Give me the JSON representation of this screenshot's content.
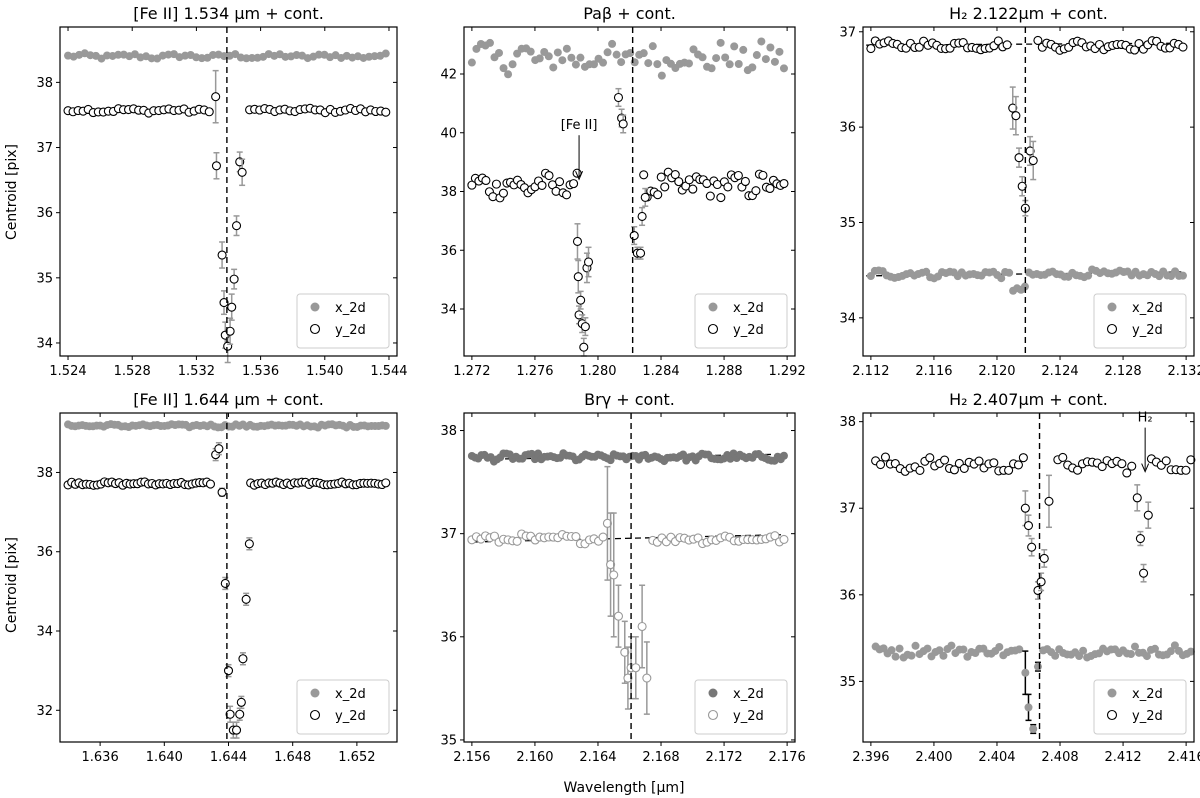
{
  "figure": {
    "xlabel": "Wavelength [μm]",
    "ylabel": "Centroid [pix]"
  },
  "chart_data": [
    {
      "type": "scatter",
      "title": "[Fe II] 1.534 μm + cont.",
      "xlim": [
        1.5235,
        1.5445
      ],
      "ylim": [
        33.8,
        38.85
      ],
      "xticks": [
        1.524,
        1.528,
        1.532,
        1.536,
        1.54,
        1.544
      ],
      "yticks": [
        34,
        35,
        36,
        37,
        38
      ],
      "vline": 1.5339,
      "legend": {
        "position": "lower right",
        "entries": [
          "x_2d",
          "y_2d"
        ]
      },
      "series": [
        {
          "name": "x_2d",
          "marker": "filled",
          "color": "#999999",
          "baseline": {
            "from": 1.524,
            "to": 1.5438,
            "y": 38.4,
            "jitter": 0.035,
            "n": 58
          }
        },
        {
          "name": "y_2d",
          "marker": "open",
          "color": "#000000",
          "baseline": {
            "from": 1.524,
            "to": 1.5438,
            "y": 37.57,
            "jitter": 0.03,
            "n": 64,
            "gap": [
              1.5328,
              1.5351
            ]
          },
          "points": [
            {
              "x": 1.5332,
              "y": 37.78,
              "err": 0.4
            },
            {
              "x": 1.53325,
              "y": 36.72,
              "err": 0.2
            },
            {
              "x": 1.5336,
              "y": 35.35,
              "err": 0.2
            },
            {
              "x": 1.53372,
              "y": 34.62,
              "err": 0.18
            },
            {
              "x": 1.5338,
              "y": 34.12,
              "err": 0.2
            },
            {
              "x": 1.53395,
              "y": 33.95,
              "err": 0.25
            },
            {
              "x": 1.5341,
              "y": 34.18,
              "err": 0.2
            },
            {
              "x": 1.5342,
              "y": 34.55,
              "err": 0.2
            },
            {
              "x": 1.53435,
              "y": 34.98,
              "err": 0.15
            },
            {
              "x": 1.5345,
              "y": 35.8,
              "err": 0.15
            },
            {
              "x": 1.5347,
              "y": 36.78,
              "err": 0.15
            },
            {
              "x": 1.53485,
              "y": 36.62,
              "err": 0.2
            }
          ]
        }
      ]
    },
    {
      "type": "scatter",
      "title": "Paβ + cont.",
      "xlim": [
        1.2715,
        1.2925
      ],
      "ylim": [
        32.4,
        43.6
      ],
      "xticks": [
        1.272,
        1.276,
        1.28,
        1.284,
        1.288,
        1.292
      ],
      "yticks": [
        34,
        36,
        38,
        40,
        42
      ],
      "vline": 1.2822,
      "legend": {
        "position": "lower right",
        "entries": [
          "x_2d",
          "y_2d"
        ]
      },
      "annotations": [
        {
          "text": "[Fe II]",
          "x": 1.2788,
          "y": 38.35
        }
      ],
      "series": [
        {
          "name": "x_2d",
          "marker": "filled",
          "color": "#999999",
          "baseline": {
            "from": 1.272,
            "to": 1.2918,
            "y": 42.55,
            "jitter": 0.45,
            "n": 70
          }
        },
        {
          "name": "y_2d",
          "marker": "open",
          "color": "#000000",
          "baseline": {
            "from": 1.272,
            "to": 1.2918,
            "y": 38.2,
            "jitter": 0.35,
            "n": 90,
            "gap": [
              1.2787,
              1.2828
            ]
          },
          "points": [
            {
              "x": 1.2787,
              "y": 36.3,
              "err": 0.6
            },
            {
              "x": 1.27875,
              "y": 35.1,
              "err": 0.55
            },
            {
              "x": 1.2788,
              "y": 33.8,
              "err": 0.3
            },
            {
              "x": 1.2789,
              "y": 34.3,
              "err": 0.3
            },
            {
              "x": 1.279,
              "y": 33.5,
              "err": 0.3
            },
            {
              "x": 1.2791,
              "y": 32.7,
              "err": 0.3
            },
            {
              "x": 1.2792,
              "y": 33.4,
              "err": 0.3
            },
            {
              "x": 1.2793,
              "y": 35.4,
              "err": 0.5
            },
            {
              "x": 1.2794,
              "y": 35.6,
              "err": 0.5
            },
            {
              "x": 1.2813,
              "y": 41.2,
              "err": 0.3
            },
            {
              "x": 1.2815,
              "y": 40.5,
              "err": 0.3
            },
            {
              "x": 1.2816,
              "y": 40.3,
              "err": 0.3
            },
            {
              "x": 1.2823,
              "y": 36.5,
              "err": 0.3
            },
            {
              "x": 1.2825,
              "y": 35.9,
              "err": 0.2
            },
            {
              "x": 1.2827,
              "y": 35.9,
              "err": 0.2
            },
            {
              "x": 1.2828,
              "y": 37.15,
              "err": 0.3
            },
            {
              "x": 1.283,
              "y": 37.8,
              "err": 0.3
            }
          ]
        }
      ]
    },
    {
      "type": "scatter",
      "title": "H₂ 2.122μm + cont.",
      "xlim": [
        2.1115,
        2.1325
      ],
      "ylim": [
        33.6,
        37.05
      ],
      "xticks": [
        2.112,
        2.116,
        2.12,
        2.124,
        2.128,
        2.132
      ],
      "yticks": [
        34,
        35,
        36,
        37
      ],
      "vline": 2.1218,
      "legend": {
        "position": "lower right",
        "entries": [
          "x_2d",
          "y_2d"
        ]
      },
      "trends": [
        {
          "from": 2.1117,
          "to": 2.1317,
          "y0": 36.86,
          "y1": 36.88
        },
        {
          "from": 2.1117,
          "to": 2.1317,
          "y0": 34.44,
          "y1": 34.48
        }
      ],
      "series": [
        {
          "name": "x_2d",
          "marker": "filled",
          "color": "#999999",
          "baseline": {
            "from": 2.112,
            "to": 2.1318,
            "y": 34.46,
            "jitter": 0.035,
            "n": 80,
            "dip": {
              "x": 2.1213,
              "y": 34.3
            }
          }
        },
        {
          "name": "y_2d",
          "marker": "open",
          "color": "#000000",
          "baseline": {
            "from": 2.112,
            "to": 2.1318,
            "y": 36.86,
            "jitter": 0.04,
            "n": 72,
            "gap": [
              2.1209,
              2.1224
            ]
          },
          "points": [
            {
              "x": 2.121,
              "y": 36.2,
              "err": 0.22
            },
            {
              "x": 2.1212,
              "y": 36.12,
              "err": 0.2
            },
            {
              "x": 2.1214,
              "y": 35.68,
              "err": 0.1
            },
            {
              "x": 2.1216,
              "y": 35.38,
              "err": 0.1
            },
            {
              "x": 2.1218,
              "y": 35.15,
              "err": 0.08
            },
            {
              "x": 2.1221,
              "y": 35.75,
              "err": 0.15
            },
            {
              "x": 2.1223,
              "y": 35.65,
              "err": 0.2
            }
          ]
        }
      ]
    },
    {
      "type": "scatter",
      "title": "[Fe II] 1.644 μm + cont.",
      "xlim": [
        1.6335,
        1.6545
      ],
      "ylim": [
        31.2,
        39.5
      ],
      "xticks": [
        1.636,
        1.64,
        1.644,
        1.648,
        1.652
      ],
      "yticks": [
        32,
        34,
        36,
        38
      ],
      "vline": 1.6439,
      "legend": {
        "position": "lower right",
        "entries": [
          "x_2d",
          "y_2d"
        ]
      },
      "series": [
        {
          "name": "x_2d",
          "marker": "filled",
          "color": "#999999",
          "baseline": {
            "from": 1.634,
            "to": 1.6538,
            "y": 39.18,
            "jitter": 0.035,
            "n": 90
          }
        },
        {
          "name": "y_2d",
          "marker": "open",
          "color": "#000000",
          "baseline": {
            "from": 1.634,
            "to": 1.6538,
            "y": 37.72,
            "jitter": 0.035,
            "n": 88,
            "gap": [
              1.6431,
              1.6452
            ]
          },
          "points": [
            {
              "x": 1.6432,
              "y": 38.45,
              "err": 0.15
            },
            {
              "x": 1.6434,
              "y": 38.6,
              "err": 0.15
            },
            {
              "x": 1.6436,
              "y": 37.5,
              "err": 0.1
            },
            {
              "x": 1.6438,
              "y": 35.2,
              "err": 0.15
            },
            {
              "x": 1.644,
              "y": 33.0,
              "err": 0.15
            },
            {
              "x": 1.6441,
              "y": 31.9,
              "err": 0.2
            },
            {
              "x": 1.6443,
              "y": 31.5,
              "err": 0.2
            },
            {
              "x": 1.6445,
              "y": 31.5,
              "err": 0.2
            },
            {
              "x": 1.6447,
              "y": 31.9,
              "err": 0.15
            },
            {
              "x": 1.6448,
              "y": 32.2,
              "err": 0.15
            },
            {
              "x": 1.6449,
              "y": 33.3,
              "err": 0.15
            },
            {
              "x": 1.6451,
              "y": 34.8,
              "err": 0.15
            },
            {
              "x": 1.6453,
              "y": 36.2,
              "err": 0.15
            }
          ]
        }
      ]
    },
    {
      "type": "scatter",
      "title": "Brγ + cont.",
      "xlim": [
        2.1555,
        2.1765
      ],
      "ylim": [
        34.98,
        38.17
      ],
      "xticks": [
        2.156,
        2.16,
        2.164,
        2.168,
        2.172,
        2.176
      ],
      "yticks": [
        35,
        36,
        37,
        38
      ],
      "vline": 2.1661,
      "legend": {
        "position": "lower right",
        "entries": [
          "x_2d",
          "y_2d"
        ]
      },
      "trends": [
        {
          "from": 2.1562,
          "to": 2.1757,
          "y0": 37.72,
          "y1": 37.77
        },
        {
          "from": 2.1562,
          "to": 2.1757,
          "y0": 36.92,
          "y1": 36.99
        }
      ],
      "series": [
        {
          "name": "x_2d",
          "marker": "filled",
          "color": "#777777",
          "baseline": {
            "from": 2.156,
            "to": 2.1758,
            "y": 37.74,
            "jitter": 0.03,
            "n": 100
          }
        },
        {
          "name": "y_2d",
          "marker": "open",
          "color": "#999999",
          "baseline": {
            "from": 2.156,
            "to": 2.1758,
            "y": 36.95,
            "jitter": 0.035,
            "n": 70,
            "gap": [
              2.1645,
              2.1672
            ]
          },
          "points": [
            {
              "x": 2.1646,
              "y": 37.1,
              "err": 0.55
            },
            {
              "x": 2.1648,
              "y": 36.7,
              "err": 0.5
            },
            {
              "x": 2.165,
              "y": 36.6,
              "err": 0.6
            },
            {
              "x": 2.1653,
              "y": 36.2,
              "err": 0.3
            },
            {
              "x": 2.1657,
              "y": 35.85,
              "err": 0.3
            },
            {
              "x": 2.1659,
              "y": 35.6,
              "err": 0.3
            },
            {
              "x": 2.1661,
              "y": 35.7,
              "err": 0.3
            },
            {
              "x": 2.1664,
              "y": 35.7,
              "err": 0.3
            },
            {
              "x": 2.1668,
              "y": 36.1,
              "err": 0.4
            },
            {
              "x": 2.1671,
              "y": 35.6,
              "err": 0.35
            }
          ]
        }
      ]
    },
    {
      "type": "scatter",
      "title": "H₂ 2.407μm + cont.",
      "xlim": [
        2.3955,
        2.4165
      ],
      "ylim": [
        34.3,
        38.1
      ],
      "xticks": [
        2.396,
        2.4,
        2.404,
        2.408,
        2.412,
        2.416
      ],
      "yticks": [
        35,
        36,
        37,
        38
      ],
      "vline": 2.4067,
      "legend": {
        "position": "lower right",
        "entries": [
          "x_2d",
          "y_2d"
        ]
      },
      "annotations": [
        {
          "text": "H₂",
          "x": 2.4134,
          "y": 37.4
        }
      ],
      "series": [
        {
          "name": "x_2d",
          "marker": "filled",
          "color": "#999999",
          "baseline": {
            "from": 2.3963,
            "to": 2.4163,
            "y": 35.35,
            "jitter": 0.06,
            "n": 80,
            "gap": [
              2.4056,
              2.4068
            ]
          },
          "points": [
            {
              "x": 2.4058,
              "y": 35.1,
              "err": 0.25,
              "errColor": "#000000"
            },
            {
              "x": 2.406,
              "y": 34.7,
              "err": 0.15,
              "errColor": "#000000"
            },
            {
              "x": 2.4063,
              "y": 34.45,
              "err": 0.05,
              "errColor": "#000000"
            },
            {
              "x": 2.4066,
              "y": 35.17,
              "err": 0.05,
              "errColor": "#000000"
            }
          ]
        },
        {
          "name": "y_2d",
          "marker": "open",
          "color": "#000000",
          "baseline": {
            "from": 2.3963,
            "to": 2.4163,
            "y": 37.5,
            "jitter": 0.07,
            "n": 65,
            "gap": [
              2.4058,
              2.4076
            ],
            "gap2": [
              2.4128,
              2.4137
            ]
          },
          "points": [
            {
              "x": 2.4058,
              "y": 37.0,
              "err": 0.2
            },
            {
              "x": 2.406,
              "y": 36.8,
              "err": 0.12
            },
            {
              "x": 2.4062,
              "y": 36.55,
              "err": 0.1
            },
            {
              "x": 2.4066,
              "y": 36.05,
              "err": 0.1
            },
            {
              "x": 2.4068,
              "y": 36.15,
              "err": 0.1
            },
            {
              "x": 2.407,
              "y": 36.42,
              "err": 0.1
            },
            {
              "x": 2.4073,
              "y": 37.08,
              "err": 0.3
            },
            {
              "x": 2.4129,
              "y": 37.12,
              "err": 0.15
            },
            {
              "x": 2.4131,
              "y": 36.65,
              "err": 0.08
            },
            {
              "x": 2.4133,
              "y": 36.25,
              "err": 0.1
            },
            {
              "x": 2.4136,
              "y": 36.92,
              "err": 0.15
            }
          ]
        }
      ]
    }
  ]
}
